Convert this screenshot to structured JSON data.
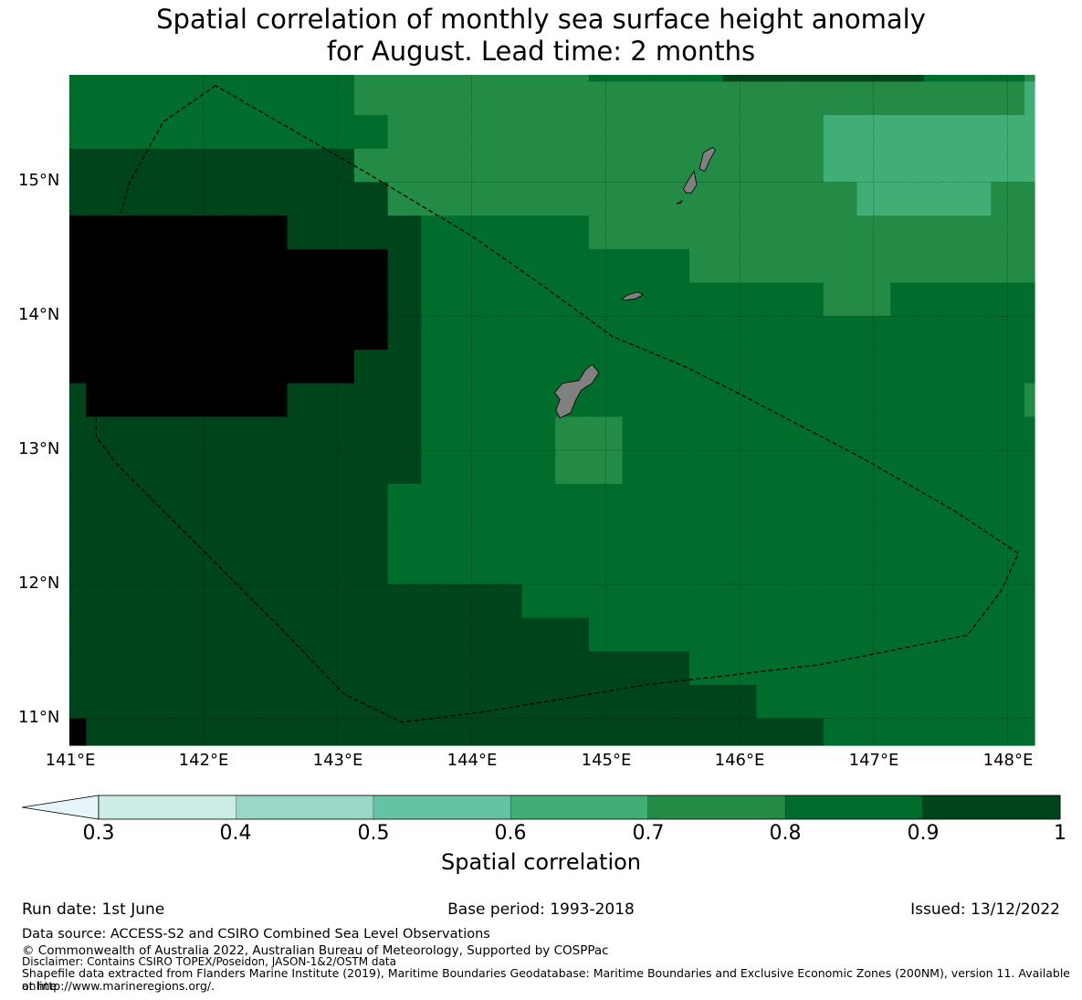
{
  "title": {
    "line1": "Spatial correlation of monthly sea surface height anomaly",
    "line2": "for August. Lead time: 2 months"
  },
  "map": {
    "lat_labels": [
      "15°N",
      "14°N",
      "13°N",
      "12°N",
      "11°N"
    ],
    "lon_labels": [
      "141°E",
      "142°E",
      "143°E",
      "144°E",
      "145°E",
      "146°E",
      "147°E",
      "148°E"
    ],
    "extent": {
      "lon_min": 141.0,
      "lon_max": 148.2,
      "lat_min": 10.8,
      "lat_max": 15.8
    },
    "grid_lines": true,
    "land_color": "#808080",
    "correlation_grid": {
      "lon_edges": [
        141.0,
        141.125,
        141.375,
        141.625,
        141.875,
        142.125,
        142.375,
        142.625,
        142.875,
        143.125,
        143.375,
        143.625,
        143.875,
        144.125,
        144.375,
        144.625,
        144.875,
        145.125,
        145.375,
        145.625,
        145.875,
        146.125,
        146.375,
        146.625,
        146.875,
        147.125,
        147.375,
        147.625,
        147.875,
        148.125,
        148.2
      ],
      "lat_edges": [
        15.8,
        15.75,
        15.5,
        15.25,
        15.0,
        14.75,
        14.5,
        14.25,
        14.0,
        13.75,
        13.5,
        13.25,
        13.0,
        12.75,
        12.5,
        12.25,
        12.0,
        11.75,
        11.5,
        11.25,
        11.0,
        10.8
      ],
      "rows": [
        "555555555444444455556666665554",
        "555555555444444444444444444443",
        "555555555544444444444443333333",
        "666666666444444444444443333333",
        "666666666644444444444444333344",
        "777777766665555544444444444444",
        "777777777765555555544444444444",
        "777777777765555555555554455555",
        "777777777765555555555555555555",
        "777777777665555555555555555555",
        "677777766665555555555555555554",
        "666666666665555445555555555555",
        "666666666665555445555555555555",
        "666666666655555555555555555555",
        "666666666655555555555555555555",
        "666666666655555555555555555555",
        "666666666666665555555555555555",
        "666666666666666655555555555555",
        "666666666666666666655555555555",
        "666666666666666666666555555555",
        "766666666666666666666665555555",
        "777766666666666666666665555555"
      ]
    },
    "islands": [
      {
        "name": "Guam",
        "coords": [
          [
            144.62,
            13.43
          ],
          [
            144.68,
            13.5
          ],
          [
            144.8,
            13.52
          ],
          [
            144.85,
            13.6
          ],
          [
            144.9,
            13.64
          ],
          [
            144.95,
            13.58
          ],
          [
            144.9,
            13.5
          ],
          [
            144.82,
            13.45
          ],
          [
            144.78,
            13.38
          ],
          [
            144.74,
            13.28
          ],
          [
            144.66,
            13.24
          ],
          [
            144.63,
            13.3
          ],
          [
            144.66,
            13.38
          ]
        ]
      },
      {
        "name": "Rota",
        "coords": [
          [
            145.12,
            14.13
          ],
          [
            145.17,
            14.16
          ],
          [
            145.24,
            14.18
          ],
          [
            145.28,
            14.16
          ],
          [
            145.22,
            14.13
          ],
          [
            145.15,
            14.12
          ]
        ]
      },
      {
        "name": "Tinian",
        "coords": [
          [
            145.58,
            14.95
          ],
          [
            145.62,
            15.02
          ],
          [
            145.66,
            15.08
          ],
          [
            145.68,
            14.98
          ],
          [
            145.64,
            14.92
          ],
          [
            145.6,
            14.92
          ]
        ]
      },
      {
        "name": "Saipan",
        "coords": [
          [
            145.7,
            15.1
          ],
          [
            145.73,
            15.22
          ],
          [
            145.8,
            15.26
          ],
          [
            145.82,
            15.24
          ],
          [
            145.78,
            15.17
          ],
          [
            145.74,
            15.08
          ]
        ]
      },
      {
        "name": "Aguijan",
        "coords": [
          [
            145.53,
            14.84
          ],
          [
            145.57,
            14.86
          ],
          [
            145.56,
            14.84
          ]
        ]
      }
    ],
    "eez_boundary": [
      [
        142.09,
        15.72
      ],
      [
        141.7,
        15.45
      ],
      [
        141.45,
        15.0
      ],
      [
        141.28,
        14.4
      ],
      [
        141.2,
        13.8
      ],
      [
        141.2,
        13.1
      ],
      [
        141.35,
        12.9
      ],
      [
        141.95,
        12.3
      ],
      [
        142.55,
        11.7
      ],
      [
        143.05,
        11.18
      ],
      [
        143.48,
        10.97
      ],
      [
        144.1,
        11.05
      ],
      [
        145.3,
        11.25
      ],
      [
        146.6,
        11.4
      ],
      [
        147.7,
        11.62
      ],
      [
        147.95,
        11.95
      ],
      [
        148.08,
        12.23
      ],
      [
        147.6,
        12.55
      ],
      [
        146.9,
        12.95
      ],
      [
        146.0,
        13.42
      ],
      [
        145.6,
        13.62
      ],
      [
        145.05,
        13.85
      ],
      [
        144.5,
        14.25
      ],
      [
        144.0,
        14.6
      ],
      [
        143.2,
        15.08
      ],
      [
        142.09,
        15.72
      ]
    ]
  },
  "colorbar": {
    "title": "Spatial correlation",
    "ticks": [
      "0.3",
      "0.4",
      "0.5",
      "0.6",
      "0.7",
      "0.8",
      "0.9",
      "1"
    ],
    "extend": "min",
    "under_color": "#e5f5f9",
    "colors": [
      "#ccece6",
      "#99d8c9",
      "#66c2a4",
      "#41ae76",
      "#238b45",
      "#006d2c",
      "#00441b"
    ]
  },
  "footer": {
    "run_date": "Run date: 1st June",
    "base_period": "Base period: 1993-2018",
    "issued": "Issued: 13/12/2022",
    "data_source": "Data source: ACCESS-S2 and CSIRO Combined Sea Level Observations",
    "copyright": "© Commonwealth of Australia 2022, Australian Bureau of Meteorology, Supported by COSPPac",
    "disclaimer": "Disclaimer: Contains CSIRO TOPEX/Poseidon, JASON-1&2/OSTM data",
    "shapefile_line1": "Shapefile data extracted from Flanders Marine Institute (2019), Maritime Boundaries Geodatabase: Maritime Boundaries and Exclusive Economic Zones (200NM), version 11. Available online",
    "shapefile_line2": "at http://www.marineregions.org/."
  }
}
